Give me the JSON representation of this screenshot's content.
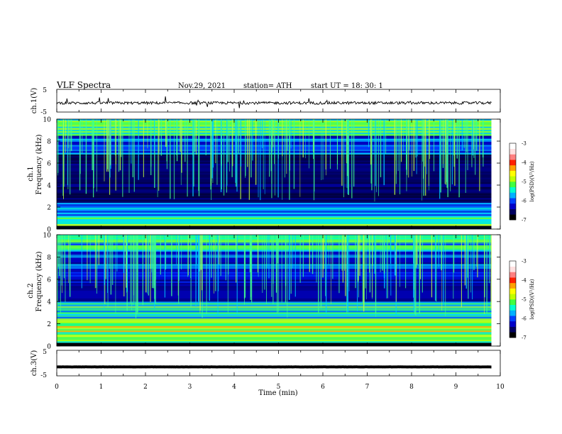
{
  "header": {
    "title": "VLF  Spectra",
    "date": "Nov.29, 2021",
    "station": "station= ATH",
    "start_ut": "start  UT  =   18: 30: 1"
  },
  "chart_data": [
    {
      "type": "line",
      "name": "ch1-waveform",
      "ylabel": "ch.1(V)",
      "ylim": [
        -5,
        5
      ],
      "y_ticks": [
        "5",
        "-5"
      ],
      "xlim": [
        0,
        10
      ],
      "x_data_end": 9.8,
      "baseline": -1.0,
      "color": "#000000"
    },
    {
      "type": "heatmap",
      "name": "ch1-spectrogram",
      "ylabel": "ch.1 Frequency (kHz)",
      "ylabel_top": "ch.1",
      "ylabel_main": "Frequency  (kHz)",
      "ylim": [
        0,
        10
      ],
      "y_ticks": [
        "0",
        "2",
        "4",
        "6",
        "8",
        "10"
      ],
      "xlim": [
        0,
        10
      ],
      "x_data_end": 9.8,
      "colorbar": {
        "label": "log(PSD)(V²/Hz)",
        "range": [
          -7,
          -3
        ],
        "ticks": [
          "-3",
          "-4",
          "-5",
          "-6",
          "-7"
        ]
      },
      "bands_khz": [
        {
          "from": 0.0,
          "to": 0.3,
          "level": "black"
        },
        {
          "from": 0.3,
          "to": 1.2,
          "level": "green-yellow"
        },
        {
          "from": 1.2,
          "to": 2.4,
          "level": "cyan"
        },
        {
          "from": 2.4,
          "to": 6.8,
          "level": "dark-blue"
        },
        {
          "from": 6.8,
          "to": 8.5,
          "level": "blue-cyan"
        },
        {
          "from": 8.5,
          "to": 10.0,
          "level": "green"
        }
      ]
    },
    {
      "type": "heatmap",
      "name": "ch2-spectrogram",
      "ylabel": "ch.2 Frequency (kHz)",
      "ylabel_top": "ch.2",
      "ylabel_main": "Frequency  (kHz)",
      "ylim": [
        0,
        10
      ],
      "y_ticks": [
        "0",
        "2",
        "4",
        "6",
        "8",
        "10"
      ],
      "xlim": [
        0,
        10
      ],
      "x_data_end": 9.8,
      "colorbar": {
        "label": "log(PSD)(V²/Hz)",
        "range": [
          -7,
          -3
        ],
        "ticks": [
          "-3",
          "-4",
          "-5",
          "-6",
          "-7"
        ]
      },
      "bands_khz": [
        {
          "from": 0.0,
          "to": 0.3,
          "level": "black"
        },
        {
          "from": 0.3,
          "to": 2.2,
          "level": "green-yellow"
        },
        {
          "from": 2.2,
          "to": 4.0,
          "level": "cyan-yellow"
        },
        {
          "from": 4.0,
          "to": 6.8,
          "level": "blue"
        },
        {
          "from": 6.8,
          "to": 8.5,
          "level": "blue-cyan"
        },
        {
          "from": 8.5,
          "to": 10.0,
          "level": "green"
        }
      ]
    },
    {
      "type": "line",
      "name": "ch3-waveform",
      "ylabel": "ch.3(V)",
      "ylim": [
        -5,
        5
      ],
      "y_ticks": [
        "5",
        "-5"
      ],
      "xlim": [
        0,
        10
      ],
      "x_data_end": 9.8,
      "baseline": -1.5,
      "color": "#000000"
    }
  ],
  "xaxis": {
    "label": "Time  (min)",
    "ticks": [
      "0",
      "1",
      "2",
      "3",
      "4",
      "5",
      "6",
      "7",
      "8",
      "9",
      "10"
    ]
  },
  "colormap": [
    "#000000",
    "#000060",
    "#0000c8",
    "#0040ff",
    "#00b0ff",
    "#00ffd0",
    "#40ff40",
    "#c0ff00",
    "#ffff00",
    "#ffa000",
    "#ff2000",
    "#ff8080",
    "#ffe0e0",
    "#ffffff"
  ]
}
